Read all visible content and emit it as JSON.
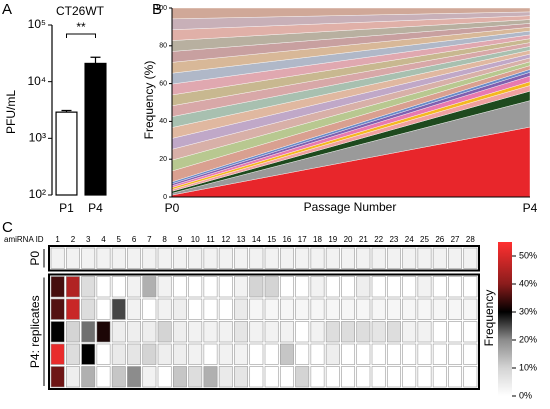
{
  "chart_data": [
    {
      "type": "bar",
      "panel": "A",
      "title": "CT26WT",
      "ylabel": "PFU/mL",
      "log": true,
      "categories": [
        "P1",
        "P4"
      ],
      "values": [
        2900,
        21000
      ],
      "errors": [
        200,
        6000
      ],
      "colors": [
        "#ffffff",
        "#000000"
      ],
      "annotation": "**",
      "ylim": [
        100,
        100000
      ],
      "yticks": [
        {
          "value": 100,
          "label": "10²"
        },
        {
          "value": 1000,
          "label": "10³"
        },
        {
          "value": 10000,
          "label": "10⁴"
        },
        {
          "value": 100000,
          "label": "10⁵"
        }
      ]
    },
    {
      "type": "stacked_area",
      "panel": "B",
      "ylabel": "Frequency (%)",
      "xlabel": "Passage Number",
      "categories": [
        "P0",
        "P4"
      ],
      "ylim": [
        0,
        100
      ],
      "yticks": [
        0,
        20,
        40,
        60,
        80,
        100
      ],
      "series": [
        {
          "color": "#e8262b",
          "values": [
            1,
            37
          ]
        },
        {
          "color": "#9a9a9a",
          "values": [
            1,
            14
          ]
        },
        {
          "color": "#1e4a1e",
          "values": [
            1,
            5
          ]
        },
        {
          "color": "#f0a0a0",
          "values": [
            1,
            3
          ]
        },
        {
          "color": "#f4b820",
          "values": [
            1,
            2
          ]
        },
        {
          "color": "#e879b0",
          "values": [
            1,
            3
          ]
        },
        {
          "color": "#8060b0",
          "values": [
            1,
            2
          ]
        },
        {
          "color": "#6a8ac8",
          "values": [
            1,
            1.5
          ]
        },
        {
          "color": "#d9a090",
          "values": [
            5.75,
            2.03
          ]
        },
        {
          "color": "#b8c890",
          "values": [
            5.75,
            2.03
          ]
        },
        {
          "color": "#d8b0a8",
          "values": [
            5.75,
            2.03
          ]
        },
        {
          "color": "#c0a8c8",
          "values": [
            5.75,
            2.03
          ]
        },
        {
          "color": "#e0b8a0",
          "values": [
            5.75,
            2.03
          ]
        },
        {
          "color": "#a8c0b0",
          "values": [
            5.75,
            2.03
          ]
        },
        {
          "color": "#d8a8a8",
          "values": [
            5.75,
            2.03
          ]
        },
        {
          "color": "#c8b890",
          "values": [
            5.75,
            2.03
          ]
        },
        {
          "color": "#e0a8b0",
          "values": [
            5.75,
            2.03
          ]
        },
        {
          "color": "#b0b8c8",
          "values": [
            5.75,
            2.03
          ]
        },
        {
          "color": "#d8b898",
          "values": [
            5.75,
            2.03
          ]
        },
        {
          "color": "#c8a0a0",
          "values": [
            5.75,
            2.03
          ]
        },
        {
          "color": "#b8b0a0",
          "values": [
            5.75,
            2.03
          ]
        },
        {
          "color": "#e0b0a8",
          "values": [
            5.75,
            2.03
          ]
        },
        {
          "color": "#c8b0b8",
          "values": [
            5.75,
            2.03
          ]
        },
        {
          "color": "#d0a898",
          "values": [
            5.75,
            2.03
          ]
        }
      ]
    },
    {
      "type": "heatmap",
      "panel": "C",
      "xlabel": "amiRNA ID",
      "colorbar_label": "Frequency",
      "columns": [
        1,
        2,
        3,
        4,
        5,
        6,
        7,
        8,
        9,
        10,
        11,
        12,
        13,
        14,
        15,
        16,
        17,
        18,
        19,
        20,
        21,
        22,
        23,
        24,
        25,
        26,
        27,
        28
      ],
      "row_groups": [
        {
          "label": "P0",
          "values": [
            [
              3,
              3,
              3,
              3,
              3,
              3,
              3,
              3,
              3,
              3,
              3,
              3,
              3,
              3,
              3,
              3,
              3,
              3,
              3,
              3,
              3,
              3,
              3,
              3,
              3,
              3,
              3,
              3
            ]
          ]
        },
        {
          "label": "P4: replicates",
          "values": [
            [
              35,
              45,
              8,
              0,
              0,
              3,
              15,
              3,
              0,
              0,
              0,
              0,
              3,
              10,
              10,
              0,
              0,
              3,
              0,
              0,
              4,
              0,
              0,
              0,
              3,
              0,
              0,
              0
            ],
            [
              36,
              48,
              8,
              0,
              25,
              3,
              0,
              3,
              4,
              0,
              0,
              0,
              5,
              2,
              2,
              2,
              2,
              2,
              2,
              2,
              2,
              2,
              2,
              2,
              2,
              2,
              2,
              2
            ],
            [
              30,
              10,
              22,
              32,
              4,
              4,
              4,
              10,
              4,
              3,
              3,
              3,
              6,
              3,
              3,
              3,
              0,
              3,
              8,
              8,
              8,
              6,
              8,
              3,
              3,
              0,
              0,
              0
            ],
            [
              52,
              8,
              30,
              0,
              5,
              6,
              10,
              4,
              4,
              3,
              0,
              3,
              3,
              0,
              0,
              12,
              0,
              0,
              4,
              0,
              0,
              0,
              0,
              0,
              0,
              0,
              0,
              0
            ],
            [
              38,
              4,
              15,
              0,
              12,
              20,
              3,
              0,
              12,
              8,
              15,
              5,
              6,
              0,
              0,
              0,
              10,
              0,
              0,
              0,
              0,
              0,
              0,
              0,
              0,
              0,
              0,
              0
            ]
          ]
        }
      ],
      "zlim": [
        0,
        55
      ],
      "colorscale": [
        [
          0,
          "#ffffff"
        ],
        [
          10,
          "#d4d4d4"
        ],
        [
          20,
          "#8c8c8c"
        ],
        [
          30,
          "#000000"
        ],
        [
          40,
          "#8a1c1c"
        ],
        [
          55,
          "#ff3030"
        ]
      ],
      "zticks": [
        {
          "value": 0,
          "label": "0%"
        },
        {
          "value": 10,
          "label": "10%"
        },
        {
          "value": 20,
          "label": "20%"
        },
        {
          "value": 30,
          "label": "30%"
        },
        {
          "value": 40,
          "label": "40%"
        },
        {
          "value": 50,
          "label": "50%"
        }
      ]
    }
  ]
}
